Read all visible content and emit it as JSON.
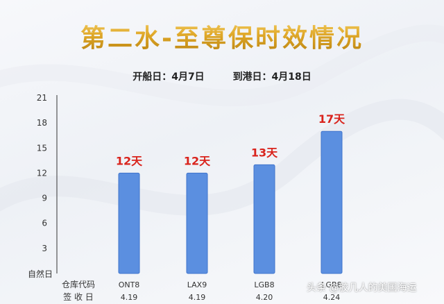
{
  "header": {
    "title": "第二水-至尊保时效情况",
    "depart_label": "开船日：4月7日",
    "arrive_label": "到港日：4月18日"
  },
  "chart_data": {
    "type": "bar",
    "categories": [
      "ONT8",
      "LAX9",
      "LGB8",
      "LGB8"
    ],
    "sign_dates": [
      "4.19",
      "4.19",
      "4.20",
      "4.24"
    ],
    "values": [
      12,
      12,
      13,
      17
    ],
    "value_labels": [
      "12天",
      "12天",
      "13天",
      "17天"
    ],
    "ylim": [
      0,
      21
    ],
    "yticks": [
      3,
      6,
      9,
      12,
      15,
      18,
      21
    ],
    "y_zero_label": "自然日",
    "row_labels": [
      "仓库代码",
      "签 收 日"
    ],
    "grid": false,
    "colors": {
      "bar": "#5b8fe0",
      "bar_edge": "#3f74cc",
      "value_label": "#d9231c",
      "axis": "#333333"
    }
  },
  "watermark": "头条 @胶几人的美国海运"
}
